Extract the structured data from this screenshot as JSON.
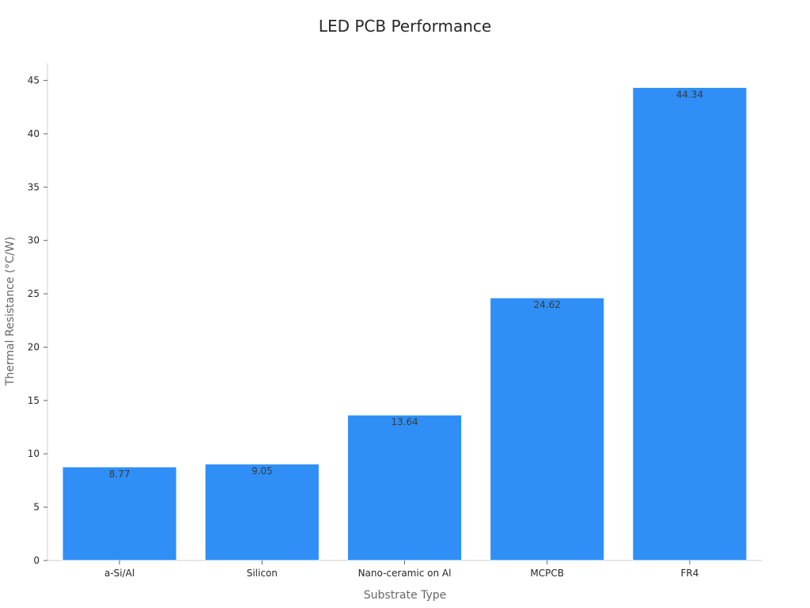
{
  "chart_data": {
    "type": "bar",
    "title": "LED PCB Performance",
    "xlabel": "Substrate Type",
    "ylabel": "Thermal Resistance (°C/W)",
    "categories": [
      "a-Si/Al",
      "Silicon",
      "Nano-ceramic on Al",
      "MCPCB",
      "FR4"
    ],
    "values": [
      8.77,
      9.05,
      13.64,
      24.62,
      44.34
    ],
    "value_labels": [
      "8.77",
      "9.05",
      "13.64",
      "24.62",
      "44.34"
    ],
    "ylim": [
      0,
      46.6
    ],
    "yticks": [
      0,
      5,
      10,
      15,
      20,
      25,
      30,
      35,
      40,
      45
    ],
    "grid": false,
    "bar_color": "#2f8ff7"
  }
}
